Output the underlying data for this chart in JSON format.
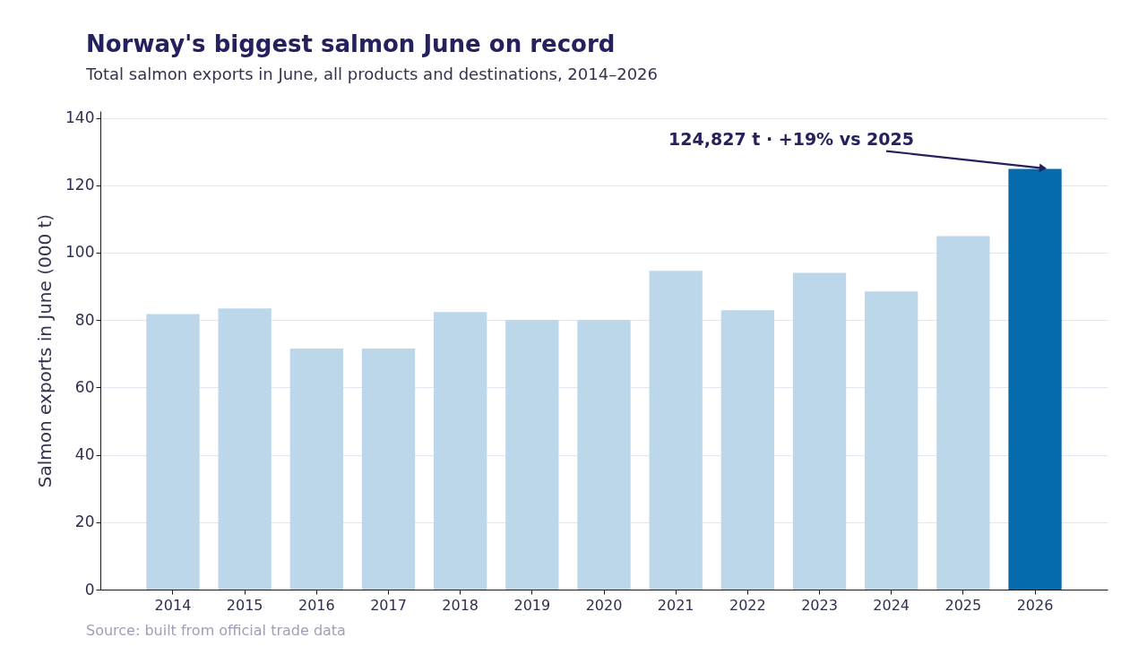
{
  "chart_data": {
    "type": "bar",
    "title": "Norway's biggest salmon June on record",
    "subtitle": "Total salmon exports in June, all products and destinations, 2014–2026",
    "ylabel": "Salmon exports in June (000 t)",
    "categories": [
      "2014",
      "2015",
      "2016",
      "2017",
      "2018",
      "2019",
      "2020",
      "2021",
      "2022",
      "2023",
      "2024",
      "2025",
      "2026"
    ],
    "values": [
      81.8,
      83.4,
      71.5,
      71.5,
      82.4,
      80.0,
      80.0,
      94.6,
      82.9,
      94.0,
      88.5,
      104.9,
      124.827
    ],
    "colors": [
      "#bcd7ea",
      "#bcd7ea",
      "#bcd7ea",
      "#bcd7ea",
      "#bcd7ea",
      "#bcd7ea",
      "#bcd7ea",
      "#bcd7ea",
      "#bcd7ea",
      "#bcd7ea",
      "#bcd7ea",
      "#bcd7ea",
      "#066bad"
    ],
    "ylim": [
      0,
      142
    ],
    "yticks": [
      0,
      20,
      40,
      60,
      80,
      100,
      120,
      140
    ],
    "grid": "y",
    "annotations": [
      {
        "text": "124,827 t · +19% vs 2025",
        "x": "2026",
        "y": 124.827
      },
      "Source: built from official trade data"
    ]
  }
}
